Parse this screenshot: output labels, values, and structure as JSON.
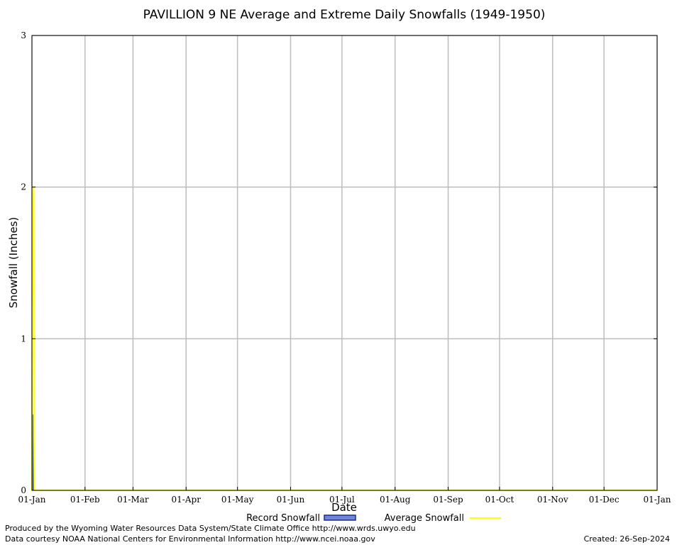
{
  "chart_data": {
    "type": "area",
    "title": "PAVILLION 9 NE Average and Extreme Daily Snowfalls (1949-1950)",
    "xlabel": "Date",
    "ylabel": "Snowfall (Inches)",
    "ylim": [
      0,
      3
    ],
    "yticks": [
      "0",
      "1",
      "2",
      "3"
    ],
    "x_ticks": [
      "01-Jan",
      "01-Feb",
      "01-Mar",
      "01-Apr",
      "01-May",
      "01-Jun",
      "01-Jul",
      "01-Aug",
      "01-Sep",
      "01-Oct",
      "01-Nov",
      "01-Dec",
      "01-Jan"
    ],
    "x_tick_days": [
      0,
      31,
      59,
      90,
      120,
      151,
      181,
      212,
      243,
      273,
      304,
      334,
      365
    ],
    "xlim_days": [
      0,
      365
    ],
    "grid": true,
    "legend_position": "bottom",
    "series": [
      {
        "name": "Record Snowfall",
        "style": "filled-bar",
        "color": "#1a2a8a",
        "points": [
          [
            0,
            0.5
          ],
          [
            1,
            0.0
          ],
          [
            365,
            0.0
          ]
        ]
      },
      {
        "name": "Average Snowfall",
        "style": "line",
        "color": "#ffff00",
        "points": [
          [
            0,
            0.0
          ],
          [
            0.3,
            1.65
          ],
          [
            1,
            2.0
          ],
          [
            1.2,
            0.33
          ],
          [
            1.4,
            0.0
          ],
          [
            365,
            0.0
          ]
        ]
      }
    ]
  },
  "footer": {
    "produced_by": "Produced by the Wyoming Water Resources Data System/State Climate Office http://www.wrds.uwyo.edu",
    "data_courtesy": "Data courtesy NOAA National Centers for Environmental Information http://www.ncei.noaa.gov",
    "created": "Created:  26-Sep-2024"
  }
}
